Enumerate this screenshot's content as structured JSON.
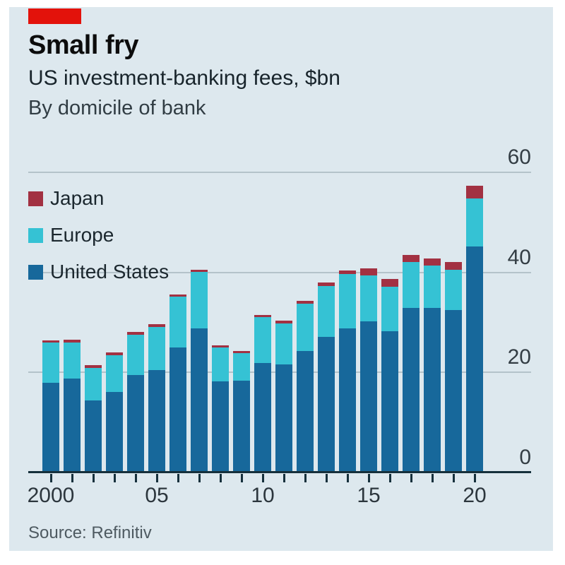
{
  "header": {
    "title": "Small fry",
    "subtitle": "US investment-banking fees, $bn",
    "byline": "By domicile of bank"
  },
  "footer": {
    "source": "Source: Refinitiv"
  },
  "colors": {
    "accent_red": "#e3120b",
    "panel_bg": "#dde8ee",
    "united_states": "#17689b",
    "europe": "#35c2d4",
    "japan": "#a23142",
    "gridline": "#b4c3ca",
    "axis": "#16303c"
  },
  "legend": [
    {
      "label": "Japan",
      "color": "#a23142"
    },
    {
      "label": "Europe",
      "color": "#35c2d4"
    },
    {
      "label": "United States",
      "color": "#17689b"
    }
  ],
  "chart_data": {
    "type": "bar",
    "stacked": true,
    "title": "Small fry",
    "subtitle": "US investment-banking fees, $bn",
    "group_by": "By domicile of bank",
    "unit": "$bn",
    "categories": [
      2000,
      2001,
      2002,
      2003,
      2004,
      2005,
      2006,
      2007,
      2008,
      2009,
      2010,
      2011,
      2012,
      2013,
      2014,
      2015,
      2016,
      2017,
      2018,
      2019,
      2020
    ],
    "series": [
      {
        "name": "United States",
        "color": "#17689b",
        "values": [
          17.8,
          18.6,
          14.2,
          16.0,
          19.4,
          20.3,
          24.8,
          28.6,
          18.0,
          18.2,
          21.8,
          21.5,
          24.2,
          27.0,
          28.7,
          30.1,
          28.1,
          32.7,
          32.7,
          32.4,
          45.1
        ]
      },
      {
        "name": "Europe",
        "color": "#35c2d4",
        "values": [
          8.0,
          7.3,
          6.6,
          7.3,
          8.0,
          8.7,
          10.2,
          11.3,
          6.8,
          5.5,
          9.1,
          8.2,
          9.4,
          10.2,
          10.8,
          9.2,
          8.9,
          9.2,
          8.5,
          8.0,
          9.6
        ]
      },
      {
        "name": "Japan",
        "color": "#a23142",
        "values": [
          0.5,
          0.5,
          0.5,
          0.5,
          0.5,
          0.5,
          0.5,
          0.5,
          0.5,
          0.5,
          0.5,
          0.5,
          0.6,
          0.7,
          0.7,
          1.4,
          1.5,
          1.4,
          1.5,
          1.5,
          2.5
        ]
      }
    ],
    "ylim": [
      0,
      60
    ],
    "yticks": [
      0,
      20,
      40,
      60
    ],
    "x_tick_labels": [
      "2000",
      "05",
      "10",
      "15",
      "20"
    ],
    "x_tick_indices": [
      0,
      5,
      10,
      15,
      20
    ],
    "grid": true,
    "legend_position": "upper-left",
    "source": "Source: Refinitiv"
  }
}
